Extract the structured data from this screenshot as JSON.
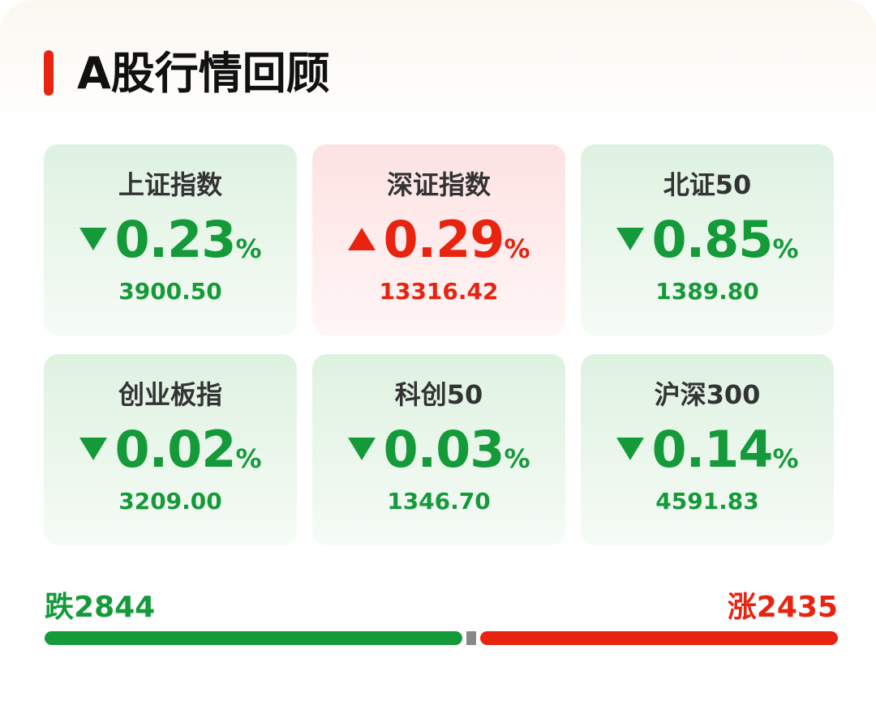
{
  "header": {
    "title": "A股行情回顾"
  },
  "unit": "%",
  "cards": [
    {
      "name": "上证指数",
      "direction": "down",
      "change": "0.23",
      "value": "3900.50"
    },
    {
      "name": "深证指数",
      "direction": "up",
      "change": "0.29",
      "value": "13316.42"
    },
    {
      "name": "北证50",
      "direction": "down",
      "change": "0.85",
      "value": "1389.80"
    },
    {
      "name": "创业板指",
      "direction": "down",
      "change": "0.02",
      "value": "3209.00"
    },
    {
      "name": "科创50",
      "direction": "down",
      "change": "0.03",
      "value": "1346.70"
    },
    {
      "name": "沪深300",
      "direction": "down",
      "change": "0.14",
      "value": "4591.83"
    }
  ],
  "breadth": {
    "fall_label": "跌",
    "fall_count": 2844,
    "rise_label": "涨",
    "rise_count": 2435
  },
  "colors": {
    "down": "#159a3a",
    "up": "#e8230f"
  }
}
